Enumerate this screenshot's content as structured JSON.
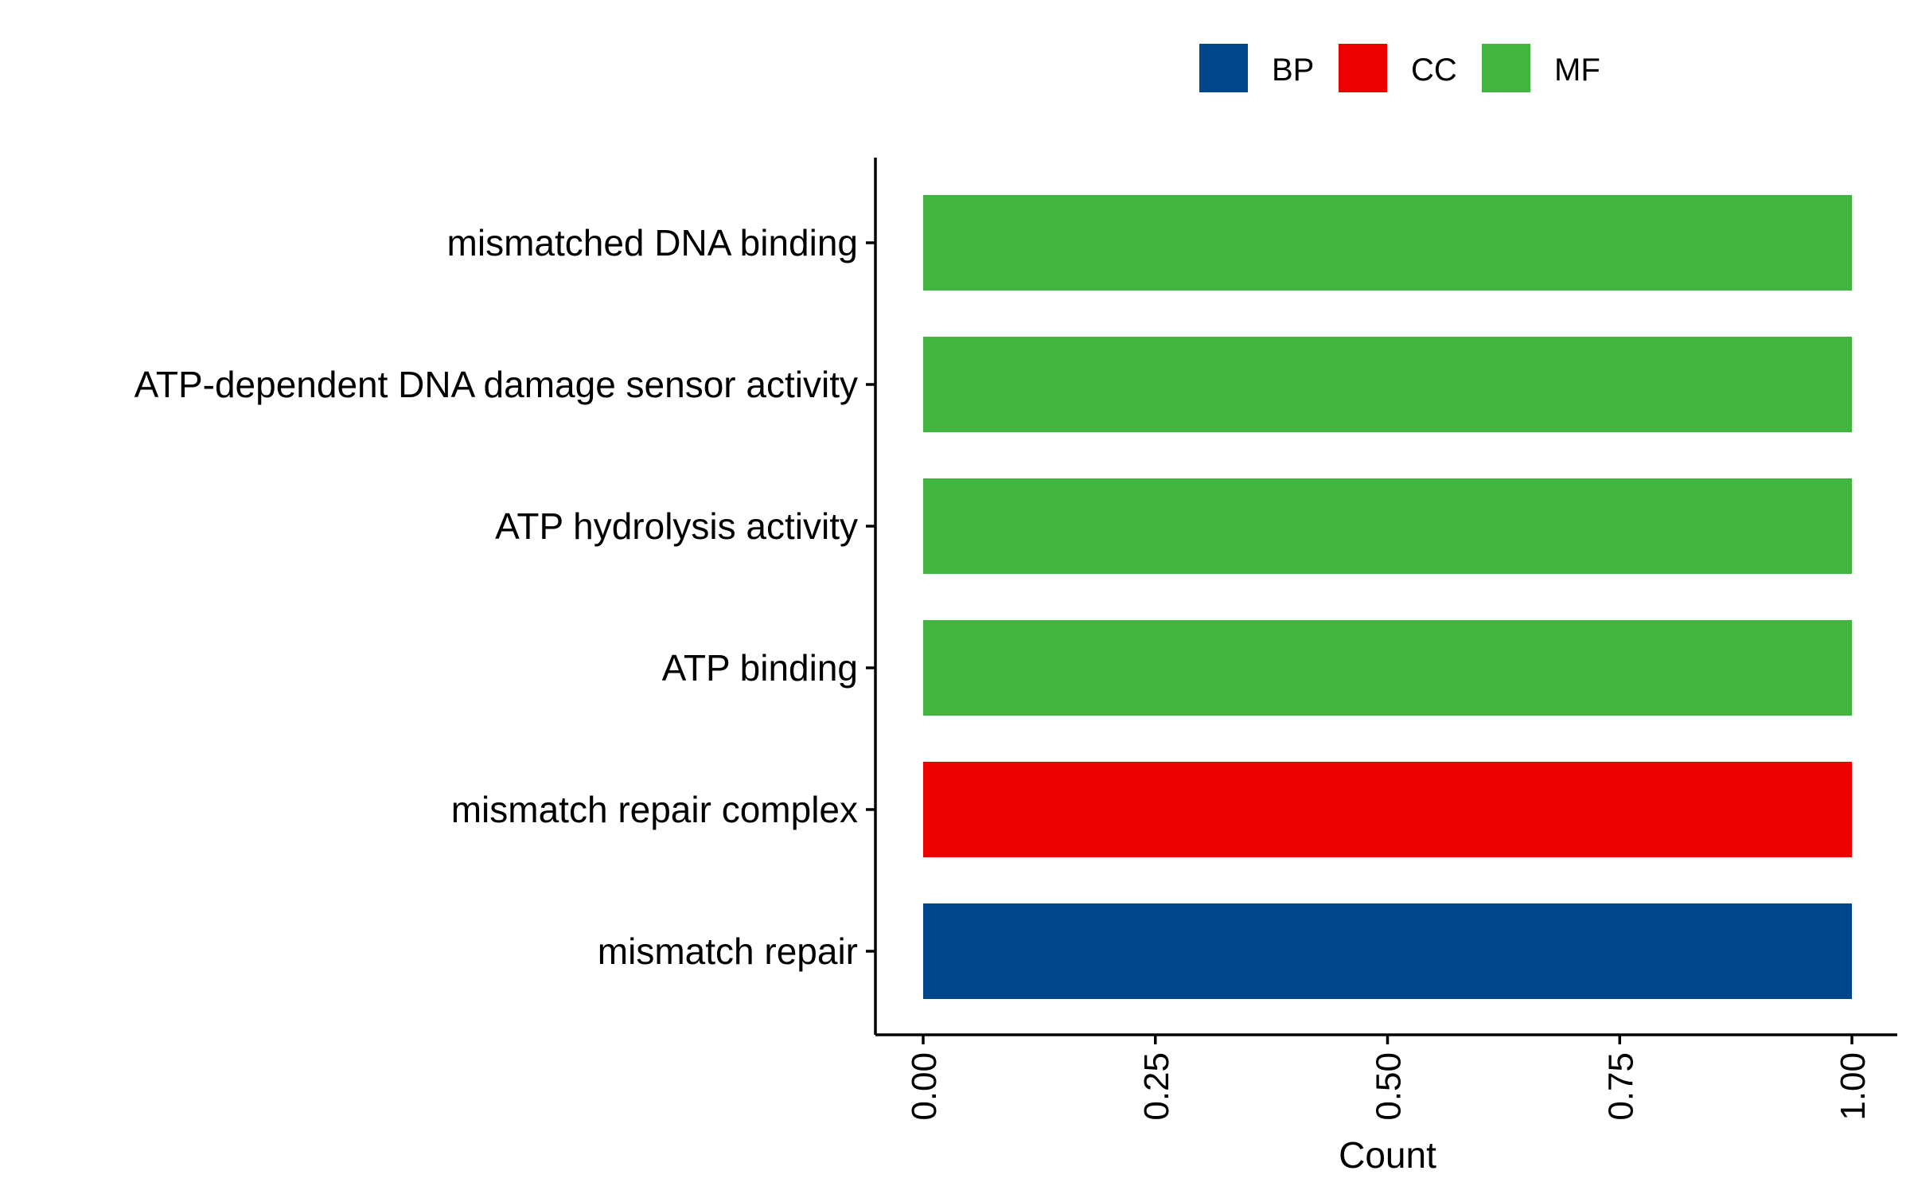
{
  "chart_data": {
    "type": "bar",
    "orientation": "horizontal",
    "title": "",
    "xlabel": "Count",
    "ylabel": "",
    "xlim": [
      0,
      1
    ],
    "x_ticks": [
      0,
      0.25,
      0.5,
      0.75,
      1
    ],
    "x_tick_labels": [
      "0.00",
      "0.25",
      "0.50",
      "0.75",
      "1.00"
    ],
    "categories": [
      "mismatched DNA binding",
      "ATP-dependent DNA damage sensor activity",
      "ATP hydrolysis activity",
      "ATP binding",
      "mismatch repair complex",
      "mismatch repair"
    ],
    "values": [
      1,
      1,
      1,
      1,
      1,
      1
    ],
    "groups": [
      "MF",
      "MF",
      "MF",
      "MF",
      "CC",
      "BP"
    ],
    "legend": {
      "position": "top",
      "entries": [
        {
          "label": "BP",
          "color": "#00468B"
        },
        {
          "label": "CC",
          "color": "#ED0000"
        },
        {
          "label": "MF",
          "color": "#42B540"
        }
      ]
    },
    "grid": false
  }
}
